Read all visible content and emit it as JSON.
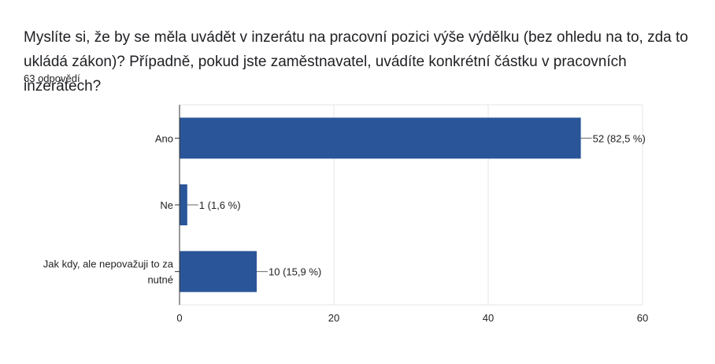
{
  "question": {
    "title": "Myslíte si, že by se měla uvádět v inzerátu na pracovní pozici výše výdělku (bez ohledu na to, zda to ukládá zákon)? Případně, pokud jste zaměstnavatel, uvádíte konkrétní částku v pracovních inzerátech?",
    "response_count": "63 odpovědí"
  },
  "chart_data": {
    "type": "bar",
    "orientation": "horizontal",
    "categories": [
      "Ano",
      "Ne",
      "Jak kdy, ale nepovažuji to za nutné"
    ],
    "category_label_lines": [
      [
        "Ano"
      ],
      [
        "Ne"
      ],
      [
        "Jak kdy, ale nepovažuji to za",
        "nutné"
      ]
    ],
    "values": [
      52,
      1,
      10
    ],
    "data_labels": [
      "52 (82,5 %)",
      "1 (1,6 %)",
      "10 (15,9 %)"
    ],
    "xlim": [
      0,
      60
    ],
    "x_ticks": [
      0,
      20,
      40,
      60
    ],
    "grid": true,
    "bar_color": "#2a5599",
    "grid_color": "#e5e5e5"
  }
}
